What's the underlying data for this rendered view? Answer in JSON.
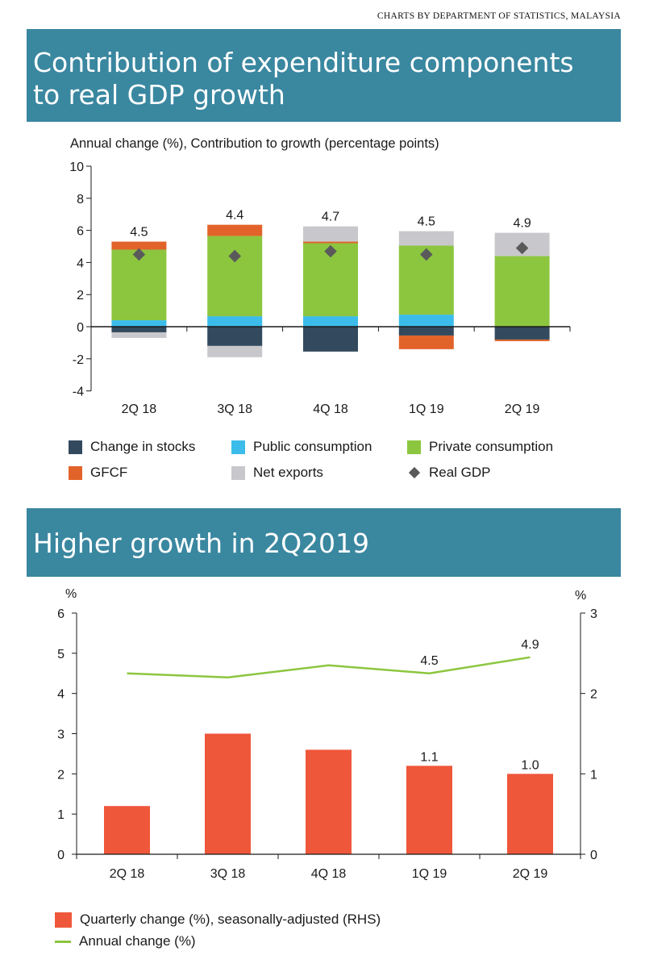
{
  "credit": "CHARTS BY DEPARTMENT OF STATISTICS, MALAYSIA",
  "chart_data": [
    {
      "type": "bar",
      "stacked": true,
      "title": "Contribution of expenditure components to real GDP growth",
      "subtitle": "Annual change (%), Contribution to growth (percentage points)",
      "categories": [
        "2Q 18",
        "3Q 18",
        "4Q 18",
        "1Q 19",
        "2Q 19"
      ],
      "ylim": [
        -4,
        10
      ],
      "yticks": [
        "10",
        "8",
        "6",
        "4",
        "2",
        "0",
        "-2",
        "-4"
      ],
      "series": [
        {
          "name": "Change in stocks",
          "color": "#334a5e",
          "values": [
            -0.35,
            -1.2,
            -1.55,
            -0.55,
            -0.8
          ]
        },
        {
          "name": "Public consumption",
          "color": "#3bbcea",
          "values": [
            0.4,
            0.65,
            0.65,
            0.75,
            0.0
          ]
        },
        {
          "name": "Private consumption",
          "color": "#8cc63f",
          "values": [
            4.4,
            5.0,
            4.55,
            4.3,
            4.4
          ]
        },
        {
          "name": "GFCF",
          "color": "#e2632a",
          "values": [
            0.5,
            0.7,
            0.1,
            -0.85,
            -0.1
          ]
        },
        {
          "name": "Net exports",
          "color": "#c8c8cc",
          "values": [
            -0.35,
            -0.7,
            0.95,
            0.9,
            1.45
          ]
        }
      ],
      "real_gdp": {
        "name": "Real GDP",
        "color": "#5a5a5a",
        "values": [
          4.5,
          4.4,
          4.7,
          4.5,
          4.9
        ],
        "labels": [
          "4.5",
          "4.4",
          "4.7",
          "4.5",
          "4.9"
        ]
      },
      "legend_position": "bottom"
    },
    {
      "type": "bar",
      "title": "Higher growth in 2Q2019",
      "categories": [
        "2Q 18",
        "3Q 18",
        "4Q 18",
        "1Q 19",
        "2Q 19"
      ],
      "ylabel_left": "%",
      "ylabel_right": "%",
      "ylim_left": [
        0,
        6
      ],
      "ylim_right": [
        0,
        3
      ],
      "yticks_left": [
        "6",
        "5",
        "4",
        "3",
        "2",
        "1",
        "0"
      ],
      "yticks_right": [
        "3",
        "2",
        "1",
        "0"
      ],
      "series": [
        {
          "name": "Quarterly change (%), seasonally-adjusted (RHS)",
          "type": "bar",
          "axis": "right",
          "color": "#ef573a",
          "values": [
            0.6,
            1.5,
            1.3,
            1.1,
            1.0
          ],
          "labels": [
            "",
            "",
            "",
            "1.1",
            "1.0"
          ]
        },
        {
          "name": "Annual change (%)",
          "type": "line",
          "axis": "left",
          "color": "#8cc63f",
          "values": [
            4.5,
            4.4,
            4.7,
            4.5,
            4.9
          ],
          "labels": [
            "",
            "",
            "",
            "4.5",
            "4.9"
          ]
        }
      ],
      "legend_position": "bottom"
    }
  ]
}
